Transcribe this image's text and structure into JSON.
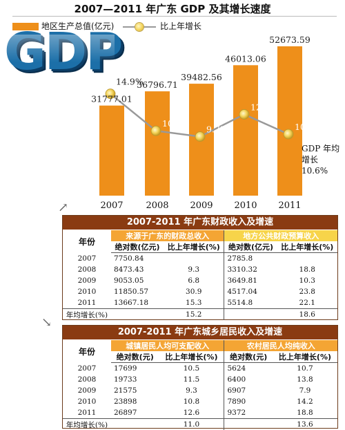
{
  "chart_data": {
    "type": "bar",
    "title": "2007—2011 年广东 GDP 及其增长速度",
    "categories": [
      "2007",
      "2008",
      "2009",
      "2010",
      "2011"
    ],
    "series": [
      {
        "name": "地区生产总值(亿元)",
        "type": "bar",
        "values": [
          31777.01,
          36796.71,
          39482.56,
          46013.06,
          52673.59
        ]
      },
      {
        "name": "比上年增长",
        "type": "line",
        "values": [
          14.9,
          10.4,
          9.7,
          12.4,
          10.0
        ]
      }
    ],
    "value_labels": [
      "31777.01",
      "36796.71",
      "39482.56",
      "46013.06",
      "52673.59"
    ],
    "growth_labels": [
      "14.9%",
      "10.4%",
      "9.7%",
      "12.4%",
      "10.0%"
    ],
    "annotation": "GDP 年均增长 10.6%",
    "colors": {
      "bar": "#ee8f1a",
      "line": "#999999",
      "dot": "#f3d35a"
    }
  },
  "chart_meta": {
    "legend_bar": "地区生产总值(亿元)",
    "legend_line": "比上年增长",
    "avg_line1": "GDP 年均",
    "avg_line2": "增长 10.6%",
    "logo_text": "GDP"
  },
  "fiscal": {
    "title": "2007-2011 年广东财政收入及增速",
    "year_header": "年份",
    "group1": "来源于广东的财政总收入",
    "group2": "地方公共财政预算收入",
    "col_abs": "绝对数(亿元)",
    "col_growth": "比上年增长(%)",
    "rows": [
      {
        "year": "2007",
        "a1": "7750.84",
        "g1": "",
        "a2": "2785.8",
        "g2": ""
      },
      {
        "year": "2008",
        "a1": "8473.43",
        "g1": "9.3",
        "a2": "3310.32",
        "g2": "18.8"
      },
      {
        "year": "2009",
        "a1": "9053.05",
        "g1": "6.8",
        "a2": "3649.81",
        "g2": "10.3"
      },
      {
        "year": "2010",
        "a1": "11850.57",
        "g1": "30.9",
        "a2": "4517.04",
        "g2": "23.8"
      },
      {
        "year": "2011",
        "a1": "13667.18",
        "g1": "15.3",
        "a2": "5514.8",
        "g2": "22.1"
      }
    ],
    "avg_label": "年均增长(%)",
    "avg1": "15.2",
    "avg2": "18.6"
  },
  "income": {
    "title": "2007-2011 年广东城乡居民收入及增速",
    "year_header": "年份",
    "group1": "城镇居民人均可支配收入",
    "group2": "农村居民人均纯收入",
    "col_abs": "绝对数(元)",
    "col_growth": "比上年增长(%)",
    "rows": [
      {
        "year": "2007",
        "a1": "17699",
        "g1": "10.5",
        "a2": "5624",
        "g2": "10.7"
      },
      {
        "year": "2008",
        "a1": "19733",
        "g1": "11.5",
        "a2": "6400",
        "g2": "13.8"
      },
      {
        "year": "2009",
        "a1": "21575",
        "g1": "9.3",
        "a2": "6907",
        "g2": "7.9"
      },
      {
        "year": "2010",
        "a1": "23898",
        "g1": "10.8",
        "a2": "7890",
        "g2": "14.2"
      },
      {
        "year": "2011",
        "a1": "26897",
        "g1": "12.6",
        "a2": "9372",
        "g2": "18.8"
      }
    ],
    "avg_label": "年均增长(%)",
    "avg1": "11.0",
    "avg2": "13.6"
  }
}
